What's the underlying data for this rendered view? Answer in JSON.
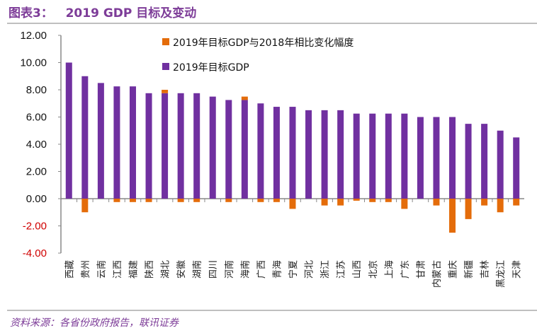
{
  "header": {
    "title": "图表3：   2019 GDP 目标及变动"
  },
  "footer": {
    "source": "资料来源：各省份政府报告，联讯证券"
  },
  "colors": {
    "target": "#7030a0",
    "change": "#e46c0a",
    "negative_tick": "#d00000",
    "positive_tick": "#111111",
    "axis": "#888888"
  },
  "chart_data": {
    "type": "bar",
    "title": "2019 GDP 目标及变动",
    "xlabel": "",
    "ylabel": "",
    "ylim": [
      -4,
      12
    ],
    "yticks": [
      "12.00",
      "10.00",
      "8.00",
      "6.00",
      "4.00",
      "2.00",
      "0.00",
      "-2.00",
      "-4.00"
    ],
    "ytick_values": [
      12,
      10,
      8,
      6,
      4,
      2,
      0,
      -2,
      -4
    ],
    "grid": false,
    "legend_position": "top-right",
    "categories": [
      "西藏",
      "贵州",
      "云南",
      "江西",
      "福建",
      "陕西",
      "湖北",
      "安徽",
      "湖南",
      "四川",
      "河南",
      "海南",
      "广西",
      "青海",
      "宁夏",
      "河北",
      "浙江",
      "江苏",
      "山西",
      "北京",
      "上海",
      "广东",
      "甘肃",
      "内蒙古",
      "重庆",
      "新疆",
      "吉林",
      "黑龙江",
      "天津"
    ],
    "series": [
      {
        "name": "2019年目标GDP与2018年相比变化幅度",
        "color": "#e46c0a",
        "values": [
          0,
          -1.0,
          0,
          -0.25,
          -0.25,
          -0.25,
          0.25,
          -0.25,
          -0.25,
          0,
          -0.25,
          0.25,
          -0.25,
          -0.25,
          -0.75,
          0,
          -0.5,
          -0.5,
          -0.15,
          -0.25,
          -0.25,
          -0.75,
          0,
          -0.5,
          -2.5,
          -1.5,
          -0.5,
          -1.0,
          -0.5
        ]
      },
      {
        "name": "2019年目标GDP",
        "color": "#7030a0",
        "values": [
          10.0,
          9.0,
          8.5,
          8.25,
          8.25,
          7.75,
          7.75,
          7.75,
          7.75,
          7.5,
          7.25,
          7.25,
          7.0,
          6.75,
          6.75,
          6.5,
          6.5,
          6.5,
          6.25,
          6.25,
          6.25,
          6.25,
          6.0,
          6.0,
          6.0,
          5.5,
          5.5,
          5.0,
          4.5
        ]
      }
    ]
  }
}
